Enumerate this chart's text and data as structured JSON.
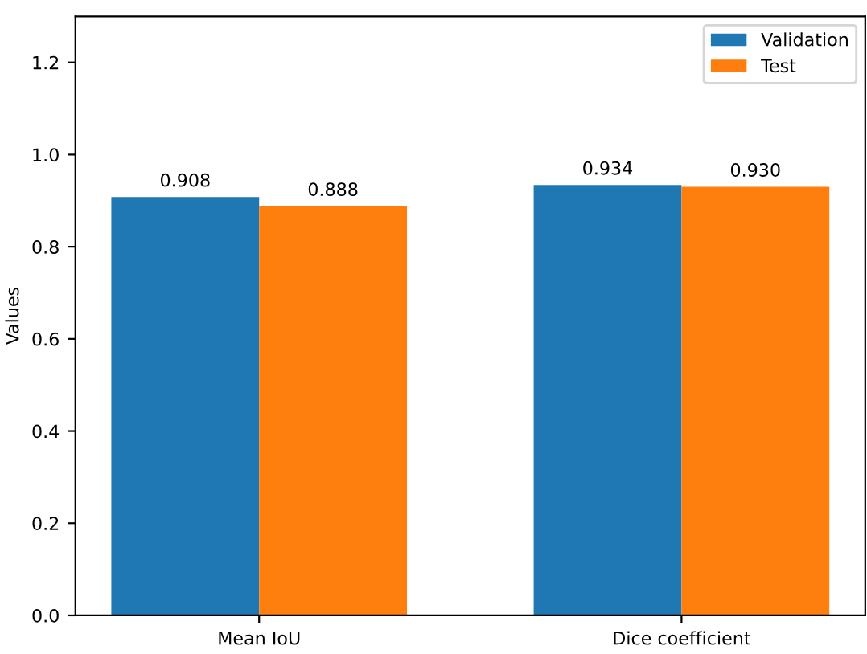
{
  "chart_data": {
    "type": "bar",
    "ylabel": "Values",
    "categories": [
      "Mean IoU",
      "Dice coefficient"
    ],
    "series": [
      {
        "name": "Validation",
        "color": "#1f77b4",
        "values": [
          0.908,
          0.934
        ],
        "value_labels": [
          "0.908",
          "0.934"
        ]
      },
      {
        "name": "Test",
        "color": "#ff7f0e",
        "values": [
          0.888,
          0.93
        ],
        "value_labels": [
          "0.888",
          "0.930"
        ]
      }
    ],
    "ylim": [
      0,
      1.3
    ],
    "yticks": [
      {
        "value": 0,
        "label": "0.0"
      },
      {
        "value": 0.2,
        "label": "0.2"
      },
      {
        "value": 0.4,
        "label": "0.4"
      },
      {
        "value": 0.6,
        "label": "0.6"
      },
      {
        "value": 0.8,
        "label": "0.8"
      },
      {
        "value": 1.0,
        "label": "1.0"
      },
      {
        "value": 1.2,
        "label": "1.2"
      }
    ],
    "legend": "top right",
    "grid": false
  }
}
